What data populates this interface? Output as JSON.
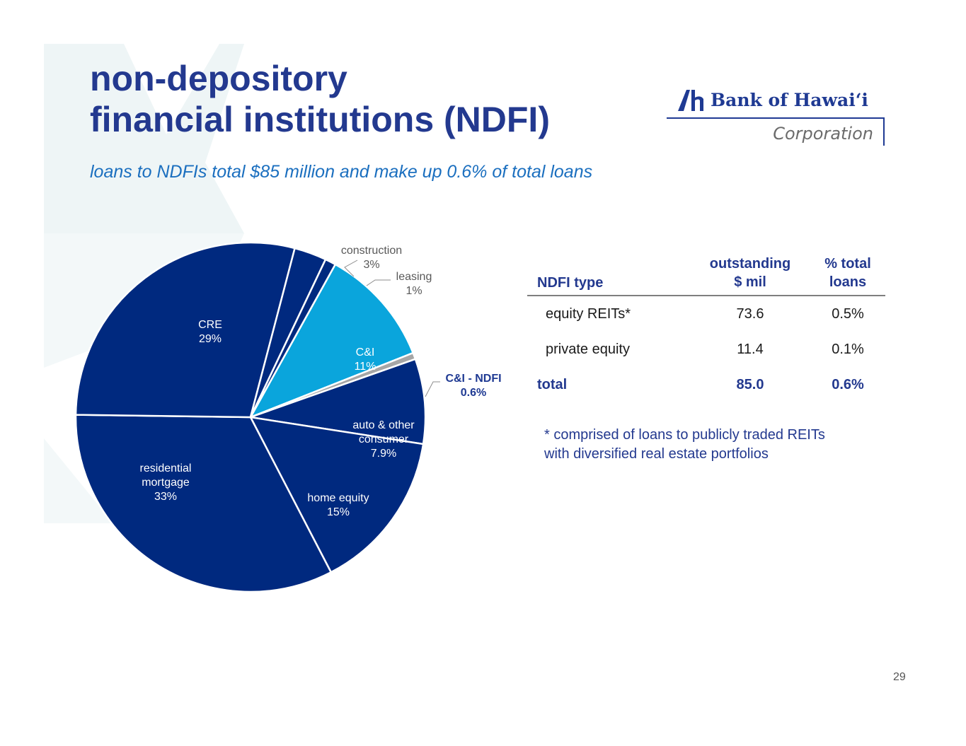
{
  "header": {
    "title_line1": "non-depository",
    "title_line2": "financial institutions (NDFI)",
    "subtitle": "loans to NDFIs total $85 million and make up 0.6% of total loans"
  },
  "logo": {
    "name": "Bank of Hawaiʻi",
    "corporation": "Corporation"
  },
  "colors": {
    "title": "#23398f",
    "subtitle": "#1b6fbf",
    "slice_dark": "#00297f",
    "slice_light": "#0aa5dc",
    "slice_gray": "#a6a6a6"
  },
  "chart_data": {
    "type": "pie",
    "slices": [
      {
        "label": "C&I",
        "value_text": "11%",
        "value": 11,
        "color": "#0aa5dc"
      },
      {
        "label": "C&I - NDFI",
        "value_text": "0.6%",
        "value": 0.6,
        "color": "#a6a6a6"
      },
      {
        "label": "auto & other consumer",
        "value_text": "7.9%",
        "value": 7.9,
        "color": "#00297f"
      },
      {
        "label": "home equity",
        "value_text": "15%",
        "value": 15,
        "color": "#00297f"
      },
      {
        "label": "residential mortgage",
        "value_text": "33%",
        "value": 33,
        "color": "#00297f"
      },
      {
        "label": "CRE",
        "value_text": "29%",
        "value": 29,
        "color": "#00297f"
      },
      {
        "label": "construction",
        "value_text": "3%",
        "value": 3,
        "color": "#00297f"
      },
      {
        "label": "leasing",
        "value_text": "1%",
        "value": 1,
        "color": "#00297f"
      }
    ],
    "label_lines": {
      "cre": [
        "CRE",
        "29%"
      ],
      "construction": [
        "construction",
        "3%"
      ],
      "leasing": [
        "leasing",
        "1%"
      ],
      "ci": [
        "C&I",
        "11%"
      ],
      "ci_ndfi": [
        "C&I - NDFI",
        "0.6%"
      ],
      "auto": [
        "auto & other",
        "consumer",
        "7.9%"
      ],
      "home": [
        "home equity",
        "15%"
      ],
      "resid": [
        "residential",
        "mortgage",
        "33%"
      ]
    }
  },
  "table": {
    "headers": {
      "type": "NDFI type",
      "outstanding_line1": "outstanding",
      "outstanding_line2": "$ mil",
      "pct_line1": "% total",
      "pct_line2": "loans"
    },
    "rows": [
      {
        "type": "equity REITs*",
        "outstanding": "73.6",
        "pct": "0.5%"
      },
      {
        "type": "private equity",
        "outstanding": "11.4",
        "pct": "0.1%"
      }
    ],
    "total": {
      "type": "total",
      "outstanding": "85.0",
      "pct": "0.6%"
    }
  },
  "footnote": {
    "line1": "* comprised of loans to publicly traded REITs",
    "line2": "with diversified real estate portfolios"
  },
  "page_number": "29"
}
